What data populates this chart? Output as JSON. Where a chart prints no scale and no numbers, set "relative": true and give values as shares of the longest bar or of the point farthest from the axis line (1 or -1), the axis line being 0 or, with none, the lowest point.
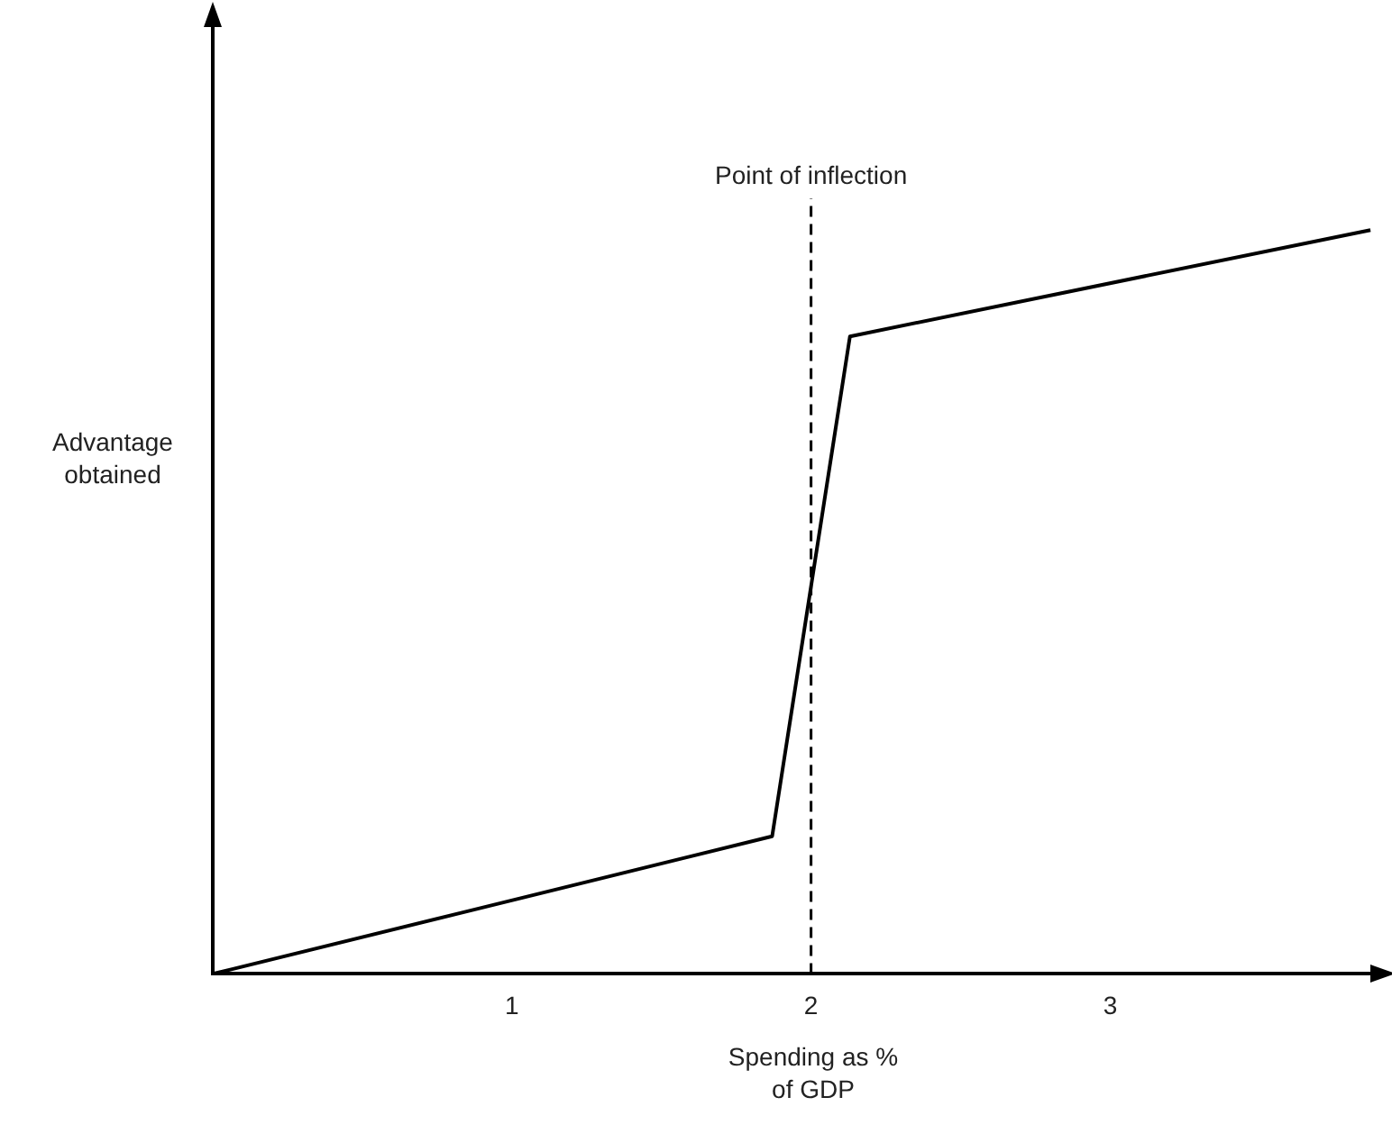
{
  "chart_data": {
    "type": "line",
    "xlabel": "Spending as % of GDP",
    "ylabel": "Advantage obtained",
    "relative": true,
    "x": [
      0,
      1.87,
      2.13,
      3.87
    ],
    "series": [
      {
        "color": "#000000",
        "values": [
          0,
          0.185,
          0.857,
          1
        ]
      }
    ],
    "xlim": [
      0,
      3.93
    ],
    "xticks": [
      1,
      2,
      3
    ],
    "grid": false,
    "legend": false,
    "marker": "none",
    "line_style": "solid",
    "ref_lines": [
      {
        "axis": "x",
        "value": 2,
        "label": "Point of inflection",
        "color": "#000000",
        "line_style": "dashed"
      }
    ]
  }
}
